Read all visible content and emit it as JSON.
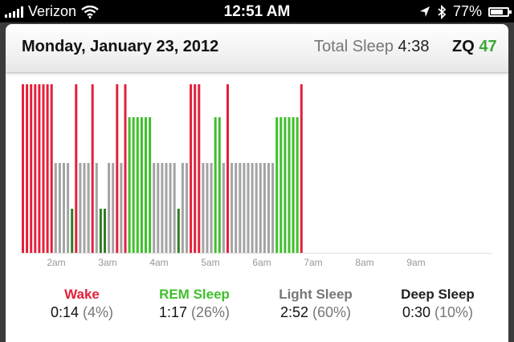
{
  "status_bar": {
    "carrier": "Verizon",
    "time": "12:51 AM",
    "battery": "77%",
    "battery_level": 0.77,
    "icons": [
      "signal-icon",
      "wifi-icon",
      "location-arrow-icon",
      "bluetooth-icon",
      "battery-icon"
    ]
  },
  "header": {
    "date": "Monday, January 23, 2012",
    "total_sleep_label": "Total Sleep",
    "total_sleep_value": "4:38",
    "zq_label": "ZQ",
    "zq_value": "47"
  },
  "colors": {
    "wake": "#e3203a",
    "rem": "#3fbf2c",
    "light": "#a3a3a3",
    "deep": "#2f7d22",
    "zq": "#3aa832"
  },
  "chart_data": {
    "type": "bar",
    "x_tick_labels": [
      "2am",
      "3am",
      "4am",
      "5am",
      "6am",
      "7am",
      "8am",
      "9am"
    ],
    "stage_levels": {
      "wake": 4,
      "rem": 3,
      "light": 2,
      "deep": 1
    },
    "segments": [
      "wake",
      "wake",
      "wake",
      "wake",
      "wake",
      "wake",
      "wake",
      "wake",
      "light",
      "light",
      "light",
      "light",
      "deep",
      "wake",
      "light",
      "light",
      "light",
      "wake",
      "light",
      "deep",
      "deep",
      "light",
      "light",
      "wake",
      "light",
      "wake",
      "rem",
      "rem",
      "rem",
      "rem",
      "rem",
      "rem",
      "light",
      "light",
      "light",
      "light",
      "light",
      "light",
      "deep",
      "light",
      "light",
      "wake",
      "wake",
      "wake",
      "light",
      "light",
      "light",
      "rem",
      "rem",
      "light",
      "wake",
      "light",
      "light",
      "light",
      "light",
      "light",
      "light",
      "light",
      "light",
      "light",
      "light",
      "light",
      "rem",
      "rem",
      "rem",
      "rem",
      "rem",
      "rem",
      "wake"
    ]
  },
  "legend": [
    {
      "key": "wake",
      "label": "Wake",
      "time": "0:14",
      "pct": "(4%)"
    },
    {
      "key": "rem",
      "label": "REM Sleep",
      "time": "1:17",
      "pct": "(26%)"
    },
    {
      "key": "light",
      "label": "Light Sleep",
      "time": "2:52",
      "pct": "(60%)"
    },
    {
      "key": "deep",
      "label": "Deep Sleep",
      "time": "0:30",
      "pct": "(10%)"
    }
  ]
}
